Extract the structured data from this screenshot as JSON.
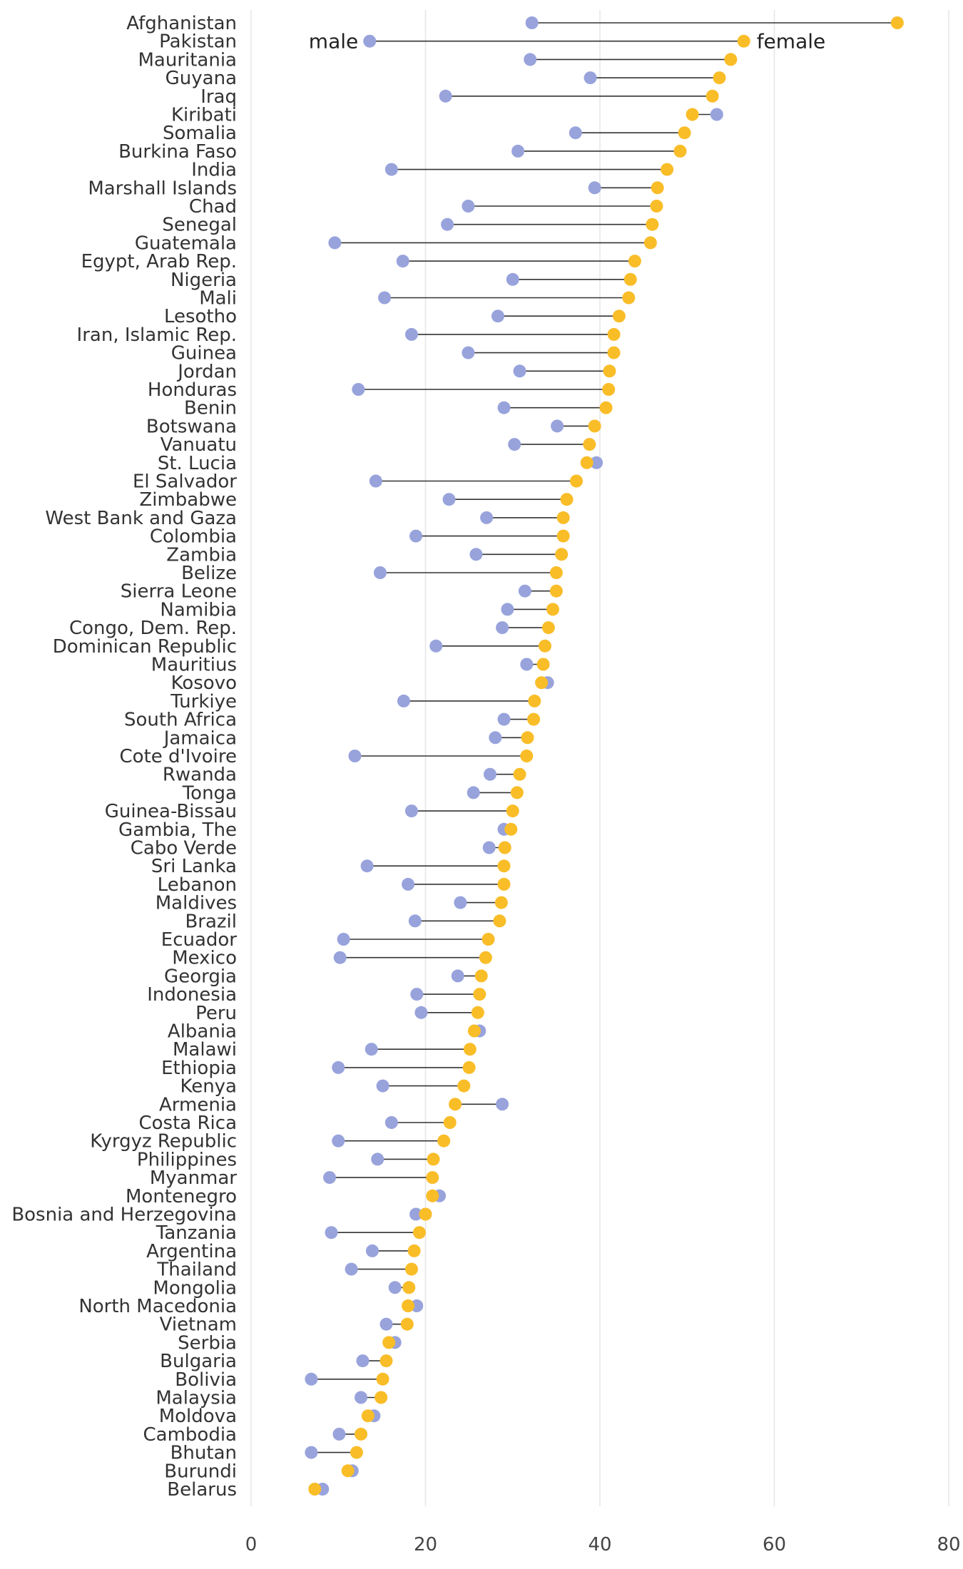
{
  "chart_data": {
    "type": "dumbbell",
    "title": "",
    "xlabel": "",
    "ylabel": "",
    "xlim": [
      0,
      80
    ],
    "x_ticks": [
      0,
      20,
      40,
      60,
      80
    ],
    "x_tick_labels": [
      "0",
      "20",
      "40",
      "60",
      "80"
    ],
    "grid": "vertical",
    "series": [
      {
        "name": "male",
        "color": "#98a3dc"
      },
      {
        "name": "female",
        "color": "#f9bd28"
      }
    ],
    "annotations": [
      {
        "text": "male",
        "series": "male",
        "row": "Pakistan",
        "side": "left"
      },
      {
        "text": "female",
        "series": "female",
        "row": "Pakistan",
        "side": "right"
      }
    ],
    "categories": [
      "Afghanistan",
      "Pakistan",
      "Mauritania",
      "Guyana",
      "Iraq",
      "Kiribati",
      "Somalia",
      "Burkina Faso",
      "India",
      "Marshall Islands",
      "Chad",
      "Senegal",
      "Guatemala",
      "Egypt, Arab Rep.",
      "Nigeria",
      "Mali",
      "Lesotho",
      "Iran, Islamic Rep.",
      "Guinea",
      "Jordan",
      "Honduras",
      "Benin",
      "Botswana",
      "Vanuatu",
      "St. Lucia",
      "El Salvador",
      "Zimbabwe",
      "West Bank and Gaza",
      "Colombia",
      "Zambia",
      "Belize",
      "Sierra Leone",
      "Namibia",
      "Congo, Dem. Rep.",
      "Dominican Republic",
      "Mauritius",
      "Kosovo",
      "Turkiye",
      "South Africa",
      "Jamaica",
      "Cote d'Ivoire",
      "Rwanda",
      "Tonga",
      "Guinea-Bissau",
      "Gambia, The",
      "Cabo Verde",
      "Sri Lanka",
      "Lebanon",
      "Maldives",
      "Brazil",
      "Ecuador",
      "Mexico",
      "Georgia",
      "Indonesia",
      "Peru",
      "Albania",
      "Malawi",
      "Ethiopia",
      "Kenya",
      "Armenia",
      "Costa Rica",
      "Kyrgyz Republic",
      "Philippines",
      "Myanmar",
      "Montenegro",
      "Bosnia and Herzegovina",
      "Tanzania",
      "Argentina",
      "Thailand",
      "Mongolia",
      "North Macedonia",
      "Vietnam",
      "Serbia",
      "Bulgaria",
      "Bolivia",
      "Malaysia",
      "Moldova",
      "Cambodia",
      "Bhutan",
      "Burundi",
      "Belarus"
    ],
    "male": [
      32.2,
      13.6,
      32.0,
      38.9,
      22.3,
      53.4,
      37.2,
      30.6,
      16.1,
      39.4,
      24.9,
      22.5,
      9.6,
      17.4,
      30.0,
      15.3,
      28.3,
      18.4,
      24.9,
      30.8,
      12.3,
      29.0,
      35.1,
      30.2,
      39.6,
      14.3,
      22.7,
      27.0,
      18.9,
      25.8,
      14.8,
      31.4,
      29.4,
      28.8,
      21.2,
      31.6,
      34.0,
      17.5,
      29.0,
      28.0,
      11.9,
      27.4,
      25.5,
      18.4,
      29.0,
      27.3,
      13.3,
      18.0,
      24.0,
      18.8,
      10.6,
      10.2,
      23.7,
      19.0,
      19.5,
      26.2,
      13.8,
      10.0,
      15.1,
      28.8,
      16.1,
      10.0,
      14.5,
      9.0,
      21.6,
      18.9,
      9.2,
      13.9,
      11.5,
      16.5,
      19.0,
      15.5,
      16.5,
      12.8,
      6.9,
      12.6,
      14.1,
      10.1,
      6.9,
      11.6,
      8.2
    ],
    "female": [
      74.1,
      56.5,
      55.0,
      53.7,
      52.9,
      50.6,
      49.7,
      49.2,
      47.7,
      46.6,
      46.5,
      46.0,
      45.8,
      44.0,
      43.5,
      43.3,
      42.2,
      41.6,
      41.6,
      41.1,
      41.0,
      40.7,
      39.4,
      38.8,
      38.5,
      37.3,
      36.2,
      35.8,
      35.8,
      35.6,
      35.0,
      35.0,
      34.6,
      34.1,
      33.7,
      33.5,
      33.3,
      32.5,
      32.4,
      31.7,
      31.6,
      30.8,
      30.5,
      30.0,
      29.8,
      29.1,
      29.0,
      29.0,
      28.7,
      28.5,
      27.2,
      26.9,
      26.4,
      26.2,
      26.0,
      25.6,
      25.1,
      25.0,
      24.4,
      23.4,
      22.8,
      22.1,
      20.9,
      20.8,
      20.8,
      20.0,
      19.3,
      18.7,
      18.4,
      18.1,
      18.0,
      17.9,
      15.8,
      15.5,
      15.1,
      14.9,
      13.4,
      12.6,
      12.1,
      11.1,
      7.3
    ]
  }
}
